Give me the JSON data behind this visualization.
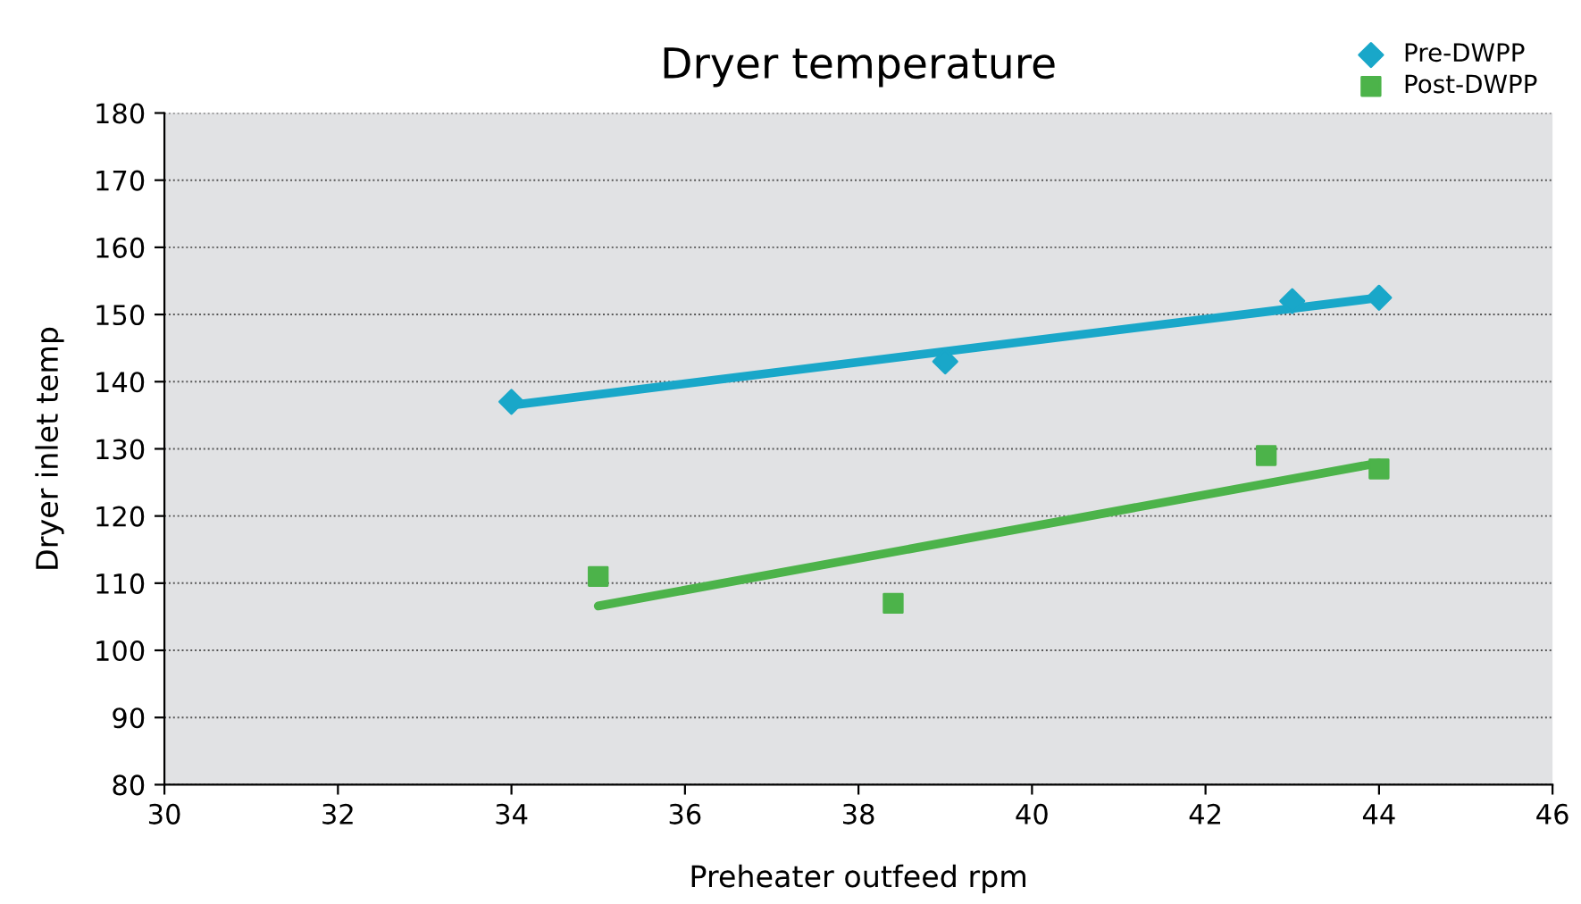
{
  "chart_data": {
    "type": "scatter",
    "title": "Dryer temperature",
    "xlabel": "Preheater outfeed rpm",
    "ylabel": "Dryer inlet temp",
    "series": [
      {
        "name": "Pre-DWPP",
        "marker": "diamond",
        "color": "#19a7c9",
        "x": [
          34,
          39,
          43,
          44
        ],
        "values": [
          137,
          143,
          152,
          152.5
        ]
      },
      {
        "name": "Post-DWPP",
        "marker": "square",
        "color": "#4cb34a",
        "x": [
          35,
          38.4,
          42.7,
          44
        ],
        "values": [
          111,
          107,
          129,
          127
        ]
      },
      {
        "type": "line",
        "marker": "none",
        "color": "#19a7c9",
        "x": [
          34,
          44
        ],
        "values": [
          136.5,
          152.5
        ]
      },
      {
        "type": "line",
        "marker": "none",
        "color": "#4cb34a",
        "x": [
          35,
          44
        ],
        "values": [
          106.6,
          127.9
        ]
      }
    ],
    "xlim": [
      30,
      46
    ],
    "xticks": [
      30,
      32,
      34,
      36,
      38,
      40,
      42,
      44,
      46
    ],
    "ylim": [
      80,
      180
    ],
    "yticks": [
      80,
      90,
      100,
      110,
      120,
      130,
      140,
      150,
      160,
      170,
      180
    ],
    "grid": "y",
    "legend": "top right"
  }
}
